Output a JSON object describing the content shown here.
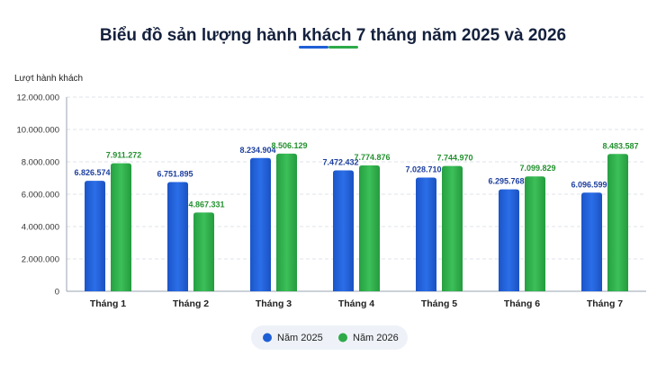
{
  "chart_data": {
    "type": "bar",
    "title": "Biểu đồ sản lượng hành khách 7 tháng năm 2025 và 2026",
    "ylabel": "Lượt hành khách",
    "xlabel": "",
    "categories": [
      "Tháng 1",
      "Tháng 2",
      "Tháng 3",
      "Tháng 4",
      "Tháng 5",
      "Tháng 6",
      "Tháng 7"
    ],
    "series": [
      {
        "name": "Năm 2025",
        "color": "#1f5fd6",
        "values": [
          6826574,
          6751895,
          8234904,
          7472432,
          7028710,
          6295768,
          6096599
        ],
        "labels": [
          "6.826.574",
          "6.751.895",
          "8.234.904",
          "7.472.432",
          "7.028.710",
          "6.295.768",
          "6.096.599"
        ]
      },
      {
        "name": "Năm 2026",
        "color": "#2eaa48",
        "values": [
          7911272,
          4867331,
          8506129,
          7774876,
          7744970,
          7099829,
          8483587
        ],
        "labels": [
          "7.911.272",
          "4.867.331",
          "8.506.129",
          "7.774.876",
          "7.744.970",
          "7.099.829",
          "8.483.587"
        ]
      }
    ],
    "ylim": [
      0,
      12000000
    ],
    "yticks": [
      0,
      2000000,
      4000000,
      6000000,
      8000000,
      10000000,
      12000000
    ],
    "ytick_labels": [
      "0",
      "2.000.000",
      "4.000.000",
      "6.000.000",
      "8.000.000",
      "10.000.000",
      "12.000.000"
    ],
    "grid": true,
    "legend_position": "bottom-center",
    "label_colors": {
      "2025": "#1d3f9e",
      "2026": "#23912f"
    },
    "accent_colors": [
      "#1f5fd6",
      "#2eaa48"
    ]
  }
}
